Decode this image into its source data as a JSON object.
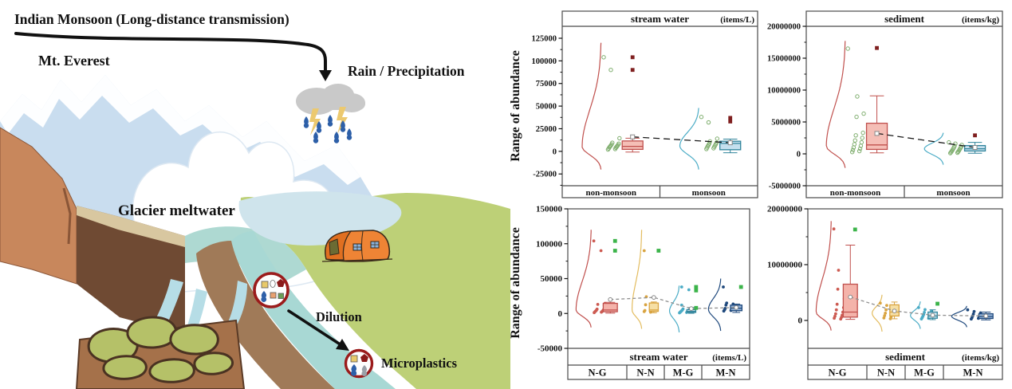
{
  "illustration": {
    "labels": {
      "monsoon_title": "Indian Monsoon (Long-distance transmission)",
      "everest": "Mt. Everest",
      "rain": "Rain / Precipitation",
      "glacier_meltwater": "Glacier meltwater",
      "dilution": "Dilution",
      "microplastics": "Microplastics"
    },
    "colors": {
      "everest_label": "#9e1f1f",
      "mountain": "#c9ddef",
      "snow": "#ffffff",
      "green_land": "#bdd077",
      "stream": "#a8d8d4",
      "lake": "#aed9d2",
      "pale_water": "#cfe4ec",
      "cliff_salmon": "#c8875c",
      "cliff_dark": "#6f4a33",
      "cliff_tan": "#d8c7a0",
      "band_brown": "#a07a58",
      "rock_base": "#a5714a",
      "rock_moss": "#b5c168",
      "tent": "#ef8435",
      "cloud": "#c9c9c9",
      "raindrop": "#2d5fa8",
      "lightning": "#ecc96f",
      "circle_ring": "#9b1b1b",
      "arrow": "#111111"
    }
  },
  "chart_data": [
    {
      "id": "stream-water-seasonal",
      "type": "boxplot",
      "title": "stream water",
      "unit": "(items/L)",
      "ylabel": "Range of abundance",
      "ylim": [
        -38000,
        138200
      ],
      "yticks": [
        125000,
        100000,
        75000,
        50000,
        25000,
        0,
        -25000
      ],
      "categories": [
        "non-monsoon",
        "monsoon"
      ],
      "groups": [
        {
          "label": "non-monsoon",
          "box": {
            "whisker_low": -800,
            "q1": 2200,
            "median": 5500,
            "q3": 11500,
            "whisker_high": 14500,
            "mean": 16000
          },
          "outliers": [
            104000,
            90000
          ],
          "scatter": [
            104000,
            90000,
            14500,
            9500,
            8500,
            7800,
            7000,
            6500,
            6000,
            5500,
            5000,
            4500,
            4000,
            3200,
            2600,
            2000
          ],
          "curve": {
            "peak": 5000,
            "tail_high": 120000,
            "tail_low": -20000
          },
          "colors": {
            "box_fill": "#f5beb6",
            "box_stroke": "#c0504d",
            "curve": "#c0504d",
            "scatter": "#7fae6e",
            "outlier": "#7f1f1f"
          }
        },
        {
          "label": "monsoon",
          "box": {
            "whisker_low": -1500,
            "q1": 1800,
            "median": 8800,
            "q3": 11200,
            "whisker_high": 13500,
            "mean": 9500
          },
          "outliers": [
            37000,
            33000
          ],
          "scatter": [
            38000,
            32000,
            14000,
            11000,
            9500,
            8600,
            7800,
            7000,
            6400,
            5800,
            5000,
            4200,
            3400,
            2600
          ],
          "curve": {
            "peak": 6000,
            "tail_high": 48000,
            "tail_low": -20000
          },
          "colors": {
            "box_fill": "#c5e0ee",
            "box_stroke": "#31849b",
            "curve": "#4bacc6",
            "scatter": "#7fae6e",
            "outlier": "#7f1f1f"
          }
        }
      ],
      "mean_line": {
        "values": [
          16000,
          9500
        ],
        "color": "#1a1a1a"
      }
    },
    {
      "id": "sediment-seasonal",
      "type": "boxplot",
      "title": "sediment",
      "unit": "(items/kg)",
      "ylabel": "",
      "ylim": [
        -5000000,
        20000000
      ],
      "yticks": [
        20000000,
        15000000,
        10000000,
        5000000,
        0,
        -5000000
      ],
      "categories": [
        "non-monsoon",
        "monsoon"
      ],
      "groups": [
        {
          "label": "non-monsoon",
          "box": {
            "whisker_low": 150000,
            "q1": 700000,
            "median": 1400000,
            "q3": 4800000,
            "whisker_high": 9100000,
            "mean": 3200000
          },
          "outliers": [
            16600000
          ],
          "scatter": [
            16500000,
            9000000,
            6300000,
            5800000,
            3300000,
            2900000,
            2500000,
            2100000,
            1800000,
            1500000,
            1250000,
            1000000,
            800000,
            600000,
            430000,
            280000
          ],
          "curve": {
            "peak": 1200000,
            "tail_high": 17700000,
            "tail_low": -2200000
          },
          "colors": {
            "box_fill": "#f5beb6",
            "box_stroke": "#c0504d",
            "curve": "#c0504d",
            "scatter": "#7fae6e",
            "outlier": "#7f1f1f"
          }
        },
        {
          "label": "monsoon",
          "box": {
            "whisker_low": 100000,
            "q1": 450000,
            "median": 800000,
            "q3": 1300000,
            "whisker_high": 1800000,
            "mean": 1000000
          },
          "outliers": [
            2900000
          ],
          "scatter": [
            1800000,
            1600000,
            1400000,
            1250000,
            1100000,
            1000000,
            900000,
            800000,
            700000,
            600000,
            500000,
            420000,
            340000,
            260000,
            180000,
            110000
          ],
          "curve": {
            "peak": 800000,
            "tail_high": 3300000,
            "tail_low": -1700000
          },
          "colors": {
            "box_fill": "#c5e0ee",
            "box_stroke": "#31849b",
            "curve": "#4bacc6",
            "scatter": "#7fae6e",
            "outlier": "#7f1f1f"
          }
        }
      ],
      "mean_line": {
        "values": [
          3200000,
          1000000
        ],
        "color": "#1a1a1a"
      }
    },
    {
      "id": "stream-water-groups",
      "type": "boxplot",
      "title": "stream water",
      "unit": "(items/L)",
      "ylabel": "Range of abundance",
      "ylim": [
        -50000,
        150000
      ],
      "yticks": [
        150000,
        100000,
        50000,
        0,
        -50000
      ],
      "categories": [
        "N-G",
        "N-N",
        "M-G",
        "M-N"
      ],
      "groups": [
        {
          "label": "N-G",
          "box": {
            "whisker_low": 500,
            "q1": 2500,
            "median": 5000,
            "q3": 14500,
            "whisker_high": 16000,
            "mean": 20000
          },
          "outliers": [
            104000,
            90000
          ],
          "scatter": [
            104000,
            90000,
            14500,
            13000,
            12000,
            6200,
            5200,
            4600,
            4000,
            3400,
            2900,
            2400,
            1900,
            1200
          ],
          "curve": {
            "peak": 5000,
            "tail_high": 120000,
            "tail_low": -20000
          },
          "colors": {
            "box_fill": "#f4b3aa",
            "box_stroke": "#c0504d",
            "curve": "#c0504d",
            "scatter": "#cd5b52",
            "outlier": "#3cb44a"
          }
        },
        {
          "label": "N-N",
          "box": {
            "whisker_low": 1000,
            "q1": 3000,
            "median": 5000,
            "q3": 15000,
            "whisker_high": 16500,
            "mean": 23000
          },
          "outliers": [
            90000
          ],
          "scatter": [
            90000,
            24000,
            14000,
            12500,
            5200,
            4300,
            3500,
            2700,
            1900
          ],
          "curve": {
            "peak": 5000,
            "tail_high": 120000,
            "tail_low": -22000
          },
          "colors": {
            "box_fill": "#f6dfa4",
            "box_stroke": "#d9a441",
            "curve": "#e3bc5f",
            "scatter": "#d9a441",
            "outlier": "#3cb44a"
          }
        },
        {
          "label": "M-G",
          "box": {
            "whisker_low": 300,
            "q1": 1500,
            "median": 3000,
            "q3": 5500,
            "whisker_high": 8500,
            "mean": 7000
          },
          "outliers": [
            38000,
            33000,
            8000
          ],
          "scatter": [
            38000,
            34000,
            12000,
            6600,
            5600,
            5000,
            4400,
            3900,
            3400,
            2900,
            2400,
            1900,
            1400,
            900
          ],
          "curve": {
            "peak": 3500,
            "tail_high": 40000,
            "tail_low": -27000
          },
          "colors": {
            "box_fill": "#c9e4f0",
            "box_stroke": "#31849b",
            "curve": "#4bacc6",
            "scatter": "#4bacc6",
            "outlier": "#3cb44a"
          }
        },
        {
          "label": "M-N",
          "box": {
            "whisker_low": 1500,
            "q1": 4000,
            "median": 7500,
            "q3": 12000,
            "whisker_high": 13500,
            "mean": 8500
          },
          "outliers": [
            38000
          ],
          "scatter": [
            38000,
            15000,
            13500,
            12000,
            8200,
            7200,
            6200,
            5200,
            4300,
            3500
          ],
          "curve": {
            "peak": 6000,
            "tail_high": 50000,
            "tail_low": -25000
          },
          "colors": {
            "box_fill": "#95b3d7",
            "box_stroke": "#1f497d",
            "curve": "#1f497d",
            "scatter": "#1f497d",
            "outlier": "#3cb44a"
          }
        }
      ],
      "mean_line": {
        "values": [
          20000,
          23000,
          7000,
          8500
        ],
        "color": "#8f8f8f"
      }
    },
    {
      "id": "sediment-groups",
      "type": "boxplot",
      "title": "sediment",
      "unit": "(items/kg)",
      "ylabel": "",
      "ylim": [
        -5000000,
        20000000
      ],
      "yticks": [
        20000000,
        10000000,
        0
      ],
      "categories": [
        "N-G",
        "N-N",
        "M-G",
        "M-N"
      ],
      "groups": [
        {
          "label": "N-G",
          "box": {
            "whisker_low": 200000,
            "q1": 600000,
            "median": 1500000,
            "q3": 6500000,
            "whisker_high": 13500000,
            "mean": 4200000
          },
          "outliers": [
            16300000
          ],
          "scatter": [
            16400000,
            9000000,
            6300000,
            5600000,
            3900000,
            2900000,
            2300000,
            1900000,
            1500000,
            1200000,
            950000,
            750000,
            550000,
            400000,
            250000
          ],
          "curve": {
            "peak": 1500000,
            "tail_high": 17800000,
            "tail_low": -1800000
          },
          "colors": {
            "box_fill": "#f4b3aa",
            "box_stroke": "#c0504d",
            "curve": "#c0504d",
            "scatter": "#cd5b52",
            "outlier": "#3cb44a"
          }
        },
        {
          "label": "N-N",
          "box": {
            "whisker_low": 300000,
            "q1": 800000,
            "median": 1500000,
            "q3": 2800000,
            "whisker_high": 3300000,
            "mean": 1700000
          },
          "outliers": [],
          "scatter": [
            3100000,
            2700000,
            2300000,
            1900000,
            1600000,
            1300000,
            1050000,
            850000,
            650000,
            450000,
            300000
          ],
          "curve": {
            "peak": 1300000,
            "tail_high": 4600000,
            "tail_low": -2000000
          },
          "colors": {
            "box_fill": "#f6dfa4",
            "box_stroke": "#d9a441",
            "curve": "#e3bc5f",
            "scatter": "#d9a441",
            "outlier": "#3cb44a"
          }
        },
        {
          "label": "M-G",
          "box": {
            "whisker_low": 150000,
            "q1": 400000,
            "median": 800000,
            "q3": 1500000,
            "whisker_high": 1900000,
            "mean": 950000
          },
          "outliers": [
            3000000
          ],
          "scatter": [
            2300000,
            1950000,
            1700000,
            1450000,
            1250000,
            1050000,
            900000,
            750000,
            620000,
            500000,
            380000,
            260000
          ],
          "curve": {
            "peak": 900000,
            "tail_high": 3400000,
            "tail_low": -1500000
          },
          "colors": {
            "box_fill": "#c9e4f0",
            "box_stroke": "#31849b",
            "curve": "#4bacc6",
            "scatter": "#4bacc6",
            "outlier": "#3cb44a"
          }
        },
        {
          "label": "M-N",
          "box": {
            "whisker_low": 100000,
            "q1": 350000,
            "median": 700000,
            "q3": 1200000,
            "whisker_high": 1500000,
            "mean": 800000
          },
          "outliers": [],
          "scatter": [
            1900000,
            1600000,
            1350000,
            1150000,
            950000,
            800000,
            650000,
            500000,
            380000,
            250000
          ],
          "curve": {
            "peak": 750000,
            "tail_high": 2600000,
            "tail_low": -1200000
          },
          "colors": {
            "box_fill": "#95b3d7",
            "box_stroke": "#1f497d",
            "curve": "#1f497d",
            "scatter": "#1f497d",
            "outlier": "#3cb44a"
          }
        }
      ],
      "mean_line": {
        "values": [
          4200000,
          1700000,
          950000,
          800000
        ],
        "color": "#8f8f8f"
      }
    }
  ]
}
